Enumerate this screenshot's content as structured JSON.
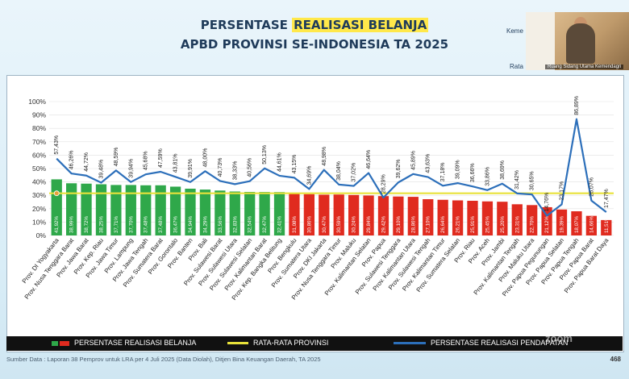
{
  "header": {
    "title_pre": "PERSENTASE ",
    "title_highlight": "REALISASI BELANJA",
    "subtitle": "APBD PROVINSI SE-INDONESIA TA 2025"
  },
  "video": {
    "label_top": "Keme",
    "label_bottom": "Rata",
    "caption": "Ruang Sidang Utama Kemendagri"
  },
  "legend": {
    "belanja": "PERSENTASE REALISASI BELANJA",
    "rata": "RATA-RATA PROVINSI",
    "pendapatan": "PERSENTASE REALISASI PENDAPATAN"
  },
  "footer": {
    "source": "Sumber Data : Laporan 38 Pemprov untuk LRA per 4 Juli 2025 (Data Diolah), Ditjen Bina Keuangan Daerah, TA 2025",
    "page": "468",
    "zoom": "zoom"
  },
  "colors": {
    "green": "#2fa84a",
    "red": "#e02b1f",
    "avg": "#e8e23a",
    "line": "#2c6fba"
  },
  "chart_data": {
    "type": "bar",
    "categories": [
      "Prov. DI Yogyakarta",
      "Prov. Nusa Tenggara Barat",
      "Prov. Jawa Barat",
      "Prov. Kep. Riau",
      "Prov. Jawa Timur",
      "Prov. Lampung",
      "Prov. Jawa Tengah",
      "Prov. Sumatera Barat",
      "Prov. Gorontalo",
      "Prov. Banten",
      "Prov. Bali",
      "Prov. Sulawesi Barat",
      "Prov. Sulawesi Utara",
      "Prov. Sulawesi Selatan",
      "Prov. Kalimantan Barat",
      "Prov. Kep. Bangka Belitung",
      "Prov. Bengkulu",
      "Prov. Sumatera Utara",
      "Prov. DKI Jakarta",
      "Prov. Nusa Tenggara Timur",
      "Prov. Maluku",
      "Prov. Kalimantan Selatan",
      "Prov. Papua",
      "Prov. Sulawesi Tenggara",
      "Prov. Kalimantan Utara",
      "Prov. Sulawesi Tengah",
      "Prov. Kalimantan Timur",
      "Prov. Sumatera Selatan",
      "Prov. Riau",
      "Prov. Aceh",
      "Prov. Jambi",
      "Prov. Kalimantan Tengah",
      "Prov. Maluku Utara",
      "Prov. Papua Pegunungan",
      "Prov. Papua Selatan",
      "Prov. Papua Tengah",
      "Prov. Papua Barat",
      "Prov. Papua Barat Daya"
    ],
    "series": [
      {
        "name": "PERSENTASE REALISASI BELANJA",
        "values": [
          41.92,
          38.99,
          38.72,
          38.25,
          37.71,
          37.7,
          37.48,
          37.48,
          36.47,
          34.94,
          34.29,
          33.56,
          32.83,
          32.54,
          32.47,
          32.41,
          31.08,
          30.86,
          30.47,
          30.59,
          30.24,
          29.84,
          29.42,
          29.1,
          28.86,
          27.1,
          26.64,
          26.21,
          25.91,
          25.45,
          25.2,
          23.31,
          22.7,
          21.12,
          19.39,
          18.07,
          14.66,
          11.51
        ],
        "labels": [
          "41,92%",
          "38,99%",
          "38,72%",
          "38,25%",
          "37,71%",
          "37,70%",
          "37,48%",
          "37,48%",
          "36,47%",
          "34,94%",
          "34,29%",
          "33,56%",
          "32,83%",
          "32,54%",
          "32,47%",
          "32,41%",
          "31,08%",
          "30,86%",
          "30,47%",
          "30,59%",
          "30,24%",
          "29,84%",
          "29,42%",
          "29,10%",
          "28,86%",
          "27,10%",
          "26,64%",
          "26,21%",
          "25,91%",
          "25,45%",
          "25,20%",
          "23,31%",
          "22,70%",
          "21,12%",
          "19,39%",
          "18,07%",
          "14,66%",
          "11,51%"
        ]
      },
      {
        "name": "PERSENTASE REALISASI PENDAPATAN",
        "values": [
          57.43,
          46.26,
          44.72,
          39.48,
          48.59,
          39.94,
          45.68,
          47.59,
          43.81,
          39.91,
          48.0,
          40.73,
          38.33,
          40.56,
          50.13,
          44.61,
          43.15,
          34.69,
          48.98,
          38.04,
          37.02,
          46.64,
          28.29,
          39.62,
          45.89,
          43.63,
          37.18,
          39.09,
          36.66,
          33.86,
          38.69,
          31.42,
          30.65,
          14.76,
          23.17,
          86.89,
          26.07,
          17.47
        ],
        "labels": [
          "57,43%",
          "46,26%",
          "44,72%",
          "39,48%",
          "48,59%",
          "39,94%",
          "45,68%",
          "47,59%",
          "43,81%",
          "39,91%",
          "48,00%",
          "40,73%",
          "38,33%",
          "40,56%",
          "50,13%",
          "44,61%",
          "43,15%",
          "34,69%",
          "48,98%",
          "38,04%",
          "37,02%",
          "46,64%",
          "28,29%",
          "39,62%",
          "45,89%",
          "43,63%",
          "37,18%",
          "39,09%",
          "36,66%",
          "33,86%",
          "38,69%",
          "31,42%",
          "30,65%",
          "14,76%",
          "23,17%",
          "86,89%",
          "26,07%",
          "17,47%"
        ]
      }
    ],
    "average": 31.5,
    "green_count": 16,
    "yticks": [
      "0%",
      "10%",
      "20%",
      "30%",
      "40%",
      "50%",
      "60%",
      "70%",
      "80%",
      "90%",
      "100%"
    ],
    "ylim": [
      0,
      100
    ]
  }
}
